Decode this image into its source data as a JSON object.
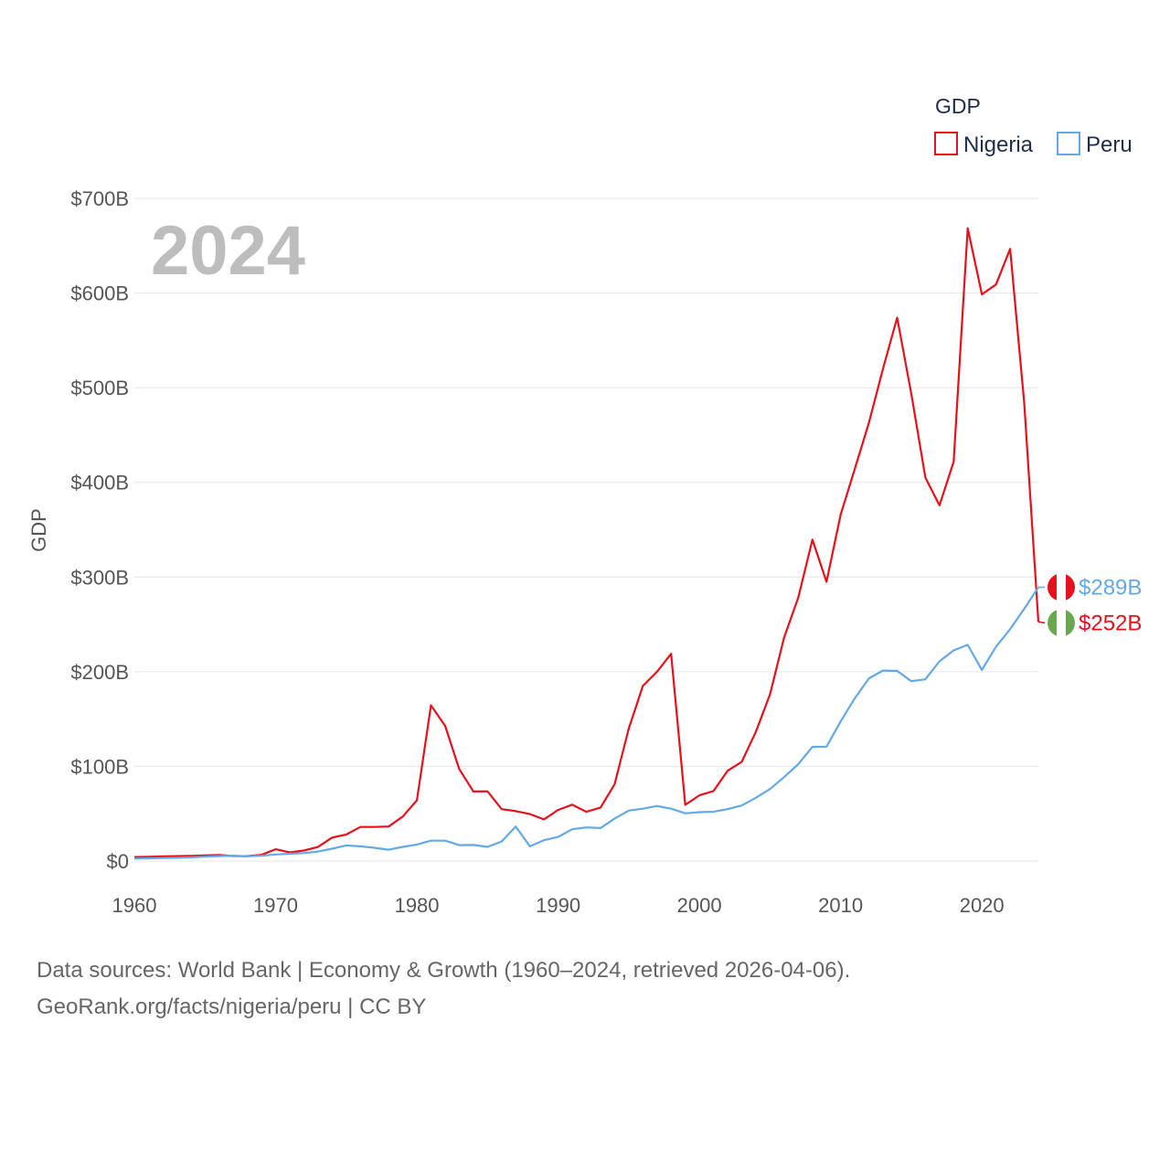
{
  "chart_data": {
    "type": "line",
    "highlight_year": "2024",
    "ylabel": "GDP",
    "legend_title": "GDP",
    "legend_position": "top-right",
    "y_tick_labels": [
      "$0",
      "$100B",
      "$200B",
      "$300B",
      "$400B",
      "$500B",
      "$600B",
      "$700B"
    ],
    "y_ticks": [
      0,
      100,
      200,
      300,
      400,
      500,
      600,
      700
    ],
    "ylim": [
      0,
      700
    ],
    "xlim": [
      1960,
      2024
    ],
    "x_ticks": [
      1960,
      1970,
      1980,
      1990,
      2000,
      2010,
      2020
    ],
    "x_tick_labels": [
      "1960",
      "1970",
      "1980",
      "1990",
      "2000",
      "2010",
      "2020"
    ],
    "x": [
      1960,
      1961,
      1962,
      1963,
      1964,
      1965,
      1966,
      1967,
      1968,
      1969,
      1970,
      1971,
      1972,
      1973,
      1974,
      1975,
      1976,
      1977,
      1978,
      1979,
      1980,
      1981,
      1982,
      1983,
      1984,
      1985,
      1986,
      1987,
      1988,
      1989,
      1990,
      1991,
      1992,
      1993,
      1994,
      1995,
      1996,
      1997,
      1998,
      1999,
      2000,
      2001,
      2002,
      2003,
      2004,
      2005,
      2006,
      2007,
      2008,
      2009,
      2010,
      2011,
      2012,
      2013,
      2014,
      2015,
      2016,
      2017,
      2018,
      2019,
      2020,
      2021,
      2022,
      2023,
      2024
    ],
    "series": [
      {
        "name": "Nigeria",
        "color": "#e8101a",
        "end_label": "$252B",
        "values": [
          4.2,
          4.5,
          4.9,
          5.2,
          5.5,
          5.9,
          6.4,
          5.3,
          5.2,
          6.6,
          12.5,
          9.2,
          11.1,
          14.9,
          24.8,
          28.0,
          36.0,
          36.0,
          36.5,
          47.0,
          64.2,
          164.5,
          142.8,
          97.1,
          73.5,
          73.7,
          54.8,
          52.7,
          49.6,
          44.0,
          54.0,
          59.6,
          52.0,
          56.5,
          81.2,
          140.0,
          185.0,
          200.0,
          219.0,
          59.4,
          69.4,
          74.0,
          95.4,
          104.9,
          136.4,
          176.1,
          236.1,
          278.3,
          339.5,
          295.0,
          366.0,
          414.0,
          463.0,
          520.0,
          574.0,
          494.0,
          405.0,
          375.7,
          421.7,
          668.4,
          598.6,
          609.0,
          646.6,
          484.0,
          252.7
        ]
      },
      {
        "name": "Peru",
        "color": "#64a9e6",
        "end_label": "$289B",
        "values": [
          2.6,
          2.9,
          3.2,
          3.5,
          3.9,
          4.6,
          5.2,
          5.7,
          5.0,
          5.6,
          7.0,
          7.7,
          8.4,
          10.0,
          13.0,
          16.5,
          15.5,
          14.0,
          12.0,
          15.0,
          17.5,
          21.5,
          21.5,
          16.8,
          17.0,
          15.0,
          20.7,
          36.5,
          15.5,
          22.0,
          25.5,
          33.6,
          35.5,
          34.9,
          44.8,
          53.3,
          55.3,
          58.1,
          55.3,
          50.4,
          51.7,
          52.0,
          54.8,
          58.7,
          66.8,
          76.1,
          88.6,
          102.2,
          120.6,
          120.8,
          147.5,
          171.8,
          193.0,
          201.2,
          200.8,
          190.0,
          191.9,
          211.0,
          222.6,
          228.3,
          201.9,
          226.3,
          245.0,
          266.4,
          289.2
        ]
      }
    ]
  },
  "footer": {
    "line1": "Data sources: World Bank | Economy & Growth (1960–2024, retrieved 2026-04-06).",
    "line2": "GeoRank.org/facts/nigeria/peru | CC BY"
  },
  "flags": {
    "peru": {
      "colors": [
        "#e8101a",
        "#ffffff",
        "#e8101a"
      ]
    },
    "nigeria": {
      "colors": [
        "#6aa84f",
        "#ffffff",
        "#6aa84f"
      ]
    }
  }
}
